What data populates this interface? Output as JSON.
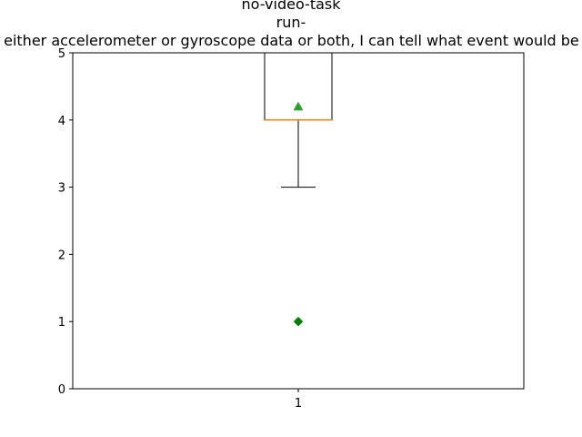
{
  "chart_data": {
    "type": "box",
    "title_lines": [
      "no-video-task",
      "run-",
      "With either accelerometer or gyroscope data or both, I can tell what event would be next"
    ],
    "categories": [
      "1"
    ],
    "ylim": [
      0,
      5
    ],
    "yticks": [
      "0",
      "1",
      "2",
      "3",
      "4",
      "5"
    ],
    "box": {
      "whisker_low": 3,
      "q1": 4,
      "median": 4,
      "q3": 5,
      "whisker_high": 5,
      "mean": 4.2,
      "outliers": [
        1
      ]
    },
    "colors": {
      "median": "#ff7f0e",
      "mean": "#2ca02c",
      "outlier": "#008000",
      "frame": "#000000"
    }
  }
}
